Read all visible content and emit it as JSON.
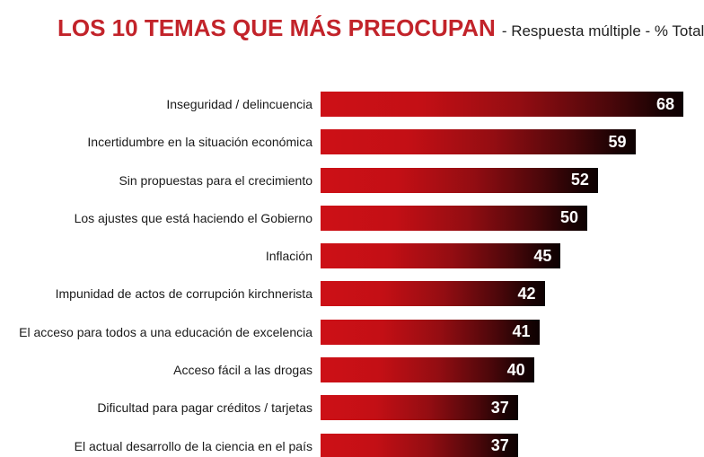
{
  "header": {
    "title": "LOS 10 TEMAS QUE MÁS PREOCUPAN",
    "subtitle": "- Respuesta múltiple - % Total"
  },
  "colors": {
    "title_red": "#c2232a",
    "subtitle_text": "#1f1f1f",
    "category_text": "#1a1a1a",
    "bar_gradient_start": "#cd1016",
    "bar_gradient_end": "#0d0102",
    "value_label": "#ffffff",
    "background": "#ffffff"
  },
  "chart_data": {
    "type": "bar",
    "orientation": "horizontal",
    "title": "LOS 10 TEMAS QUE MÁS PREOCUPAN",
    "subtitle": "- Respuesta múltiple - % Total",
    "categories": [
      "Inseguridad / delincuencia",
      "Incertidumbre en la situación económica",
      "Sin propuestas para el crecimiento",
      "Los ajustes que está haciendo el Gobierno",
      "Inflación",
      "Impunidad de actos de corrupción kirchnerista",
      "El acceso para todos a una educación de excelencia",
      "Acceso fácil a las drogas",
      "Dificultad para pagar créditos / tarjetas",
      "El actual desarrollo de la ciencia en el país"
    ],
    "values": [
      68,
      59,
      52,
      50,
      45,
      42,
      41,
      40,
      37,
      37
    ],
    "xlim": [
      0,
      68
    ],
    "value_labels_shown": true,
    "grid": false,
    "legend": false
  }
}
